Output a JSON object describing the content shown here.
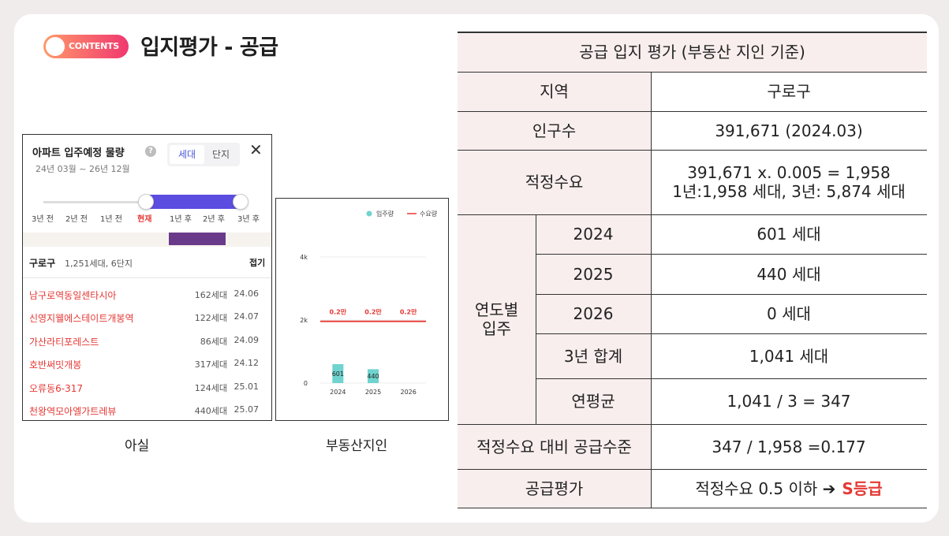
{
  "header": {
    "badge": "CONTENTS",
    "title": "입지평가 - 공급"
  },
  "asil": {
    "title": "아파트 입주예정 물량",
    "help_icon": "?",
    "date_range": "24년 03월 ~ 26년 12월",
    "tabs": [
      "세대",
      "단지"
    ],
    "close_icon": "✕",
    "ticks": [
      "3년 전",
      "2년 전",
      "1년 전",
      "현재",
      "1년 후",
      "2년 후",
      "3년 후"
    ],
    "region": "구로구",
    "region_summary": "1,251세대, 6단지",
    "fold_label": "접기",
    "complexes": [
      {
        "name": "남구로역동일센타시아",
        "units": "162세대",
        "date": "24.06"
      },
      {
        "name": "신영지웰에스테이트개봉역",
        "units": "122세대",
        "date": "24.07"
      },
      {
        "name": "가산라티포레스트",
        "units": "86세대",
        "date": "24.09"
      },
      {
        "name": "호반써밋개봉",
        "units": "317세대",
        "date": "24.12"
      },
      {
        "name": "오류동6-317",
        "units": "124세대",
        "date": "25.01"
      },
      {
        "name": "천왕역모아엘가트레뷰",
        "units": "440세대",
        "date": "25.07"
      }
    ],
    "caption": "아실"
  },
  "jiin": {
    "caption": "부동산지인",
    "legend_supply": "입주량",
    "legend_demand": "수요량",
    "ytick_labels": [
      "4k",
      "2k",
      "0"
    ],
    "demand_label": "0.2만"
  },
  "chart_data": {
    "type": "bar",
    "categories": [
      "2024",
      "2025",
      "2026"
    ],
    "series": [
      {
        "name": "입주량",
        "values": [
          601,
          440,
          0
        ],
        "labels": [
          "601",
          "440",
          ""
        ]
      },
      {
        "name": "수요량",
        "values": [
          1958,
          1958,
          1958
        ]
      }
    ],
    "ylim": [
      0,
      4000
    ],
    "legend": "top-right",
    "colors": {
      "supply": "#6fd3cf",
      "demand": "#e53935"
    }
  },
  "table": {
    "title": "공급 입지 평가 (부동산 지인 기준)",
    "region_label": "지역",
    "region_value": "구로구",
    "pop_label": "인구수",
    "pop_value": "391,671 (2024.03)",
    "demand_label": "적정수요",
    "demand_line1": "391,671 x. 0.005 = 1,958",
    "demand_line2": "1년:1,958 세대, 3년: 5,874 세대",
    "yearly_label": "연도별\n입주",
    "years": [
      {
        "label": "2024",
        "value": "601 세대"
      },
      {
        "label": "2025",
        "value": "440 세대"
      },
      {
        "label": "2026",
        "value": "0 세대"
      },
      {
        "label": "3년 합계",
        "value": "1,041 세대"
      },
      {
        "label": "연평균",
        "value": "1,041 / 3 = 347"
      }
    ],
    "level_label": "적정수요 대비 공급수준",
    "level_value": "347 / 1,958 =0.177",
    "eval_label": "공급평가",
    "eval_value": "적정수요 0.5 이하 ➔",
    "eval_grade": "S등급",
    "grade_color": "#e53935"
  }
}
